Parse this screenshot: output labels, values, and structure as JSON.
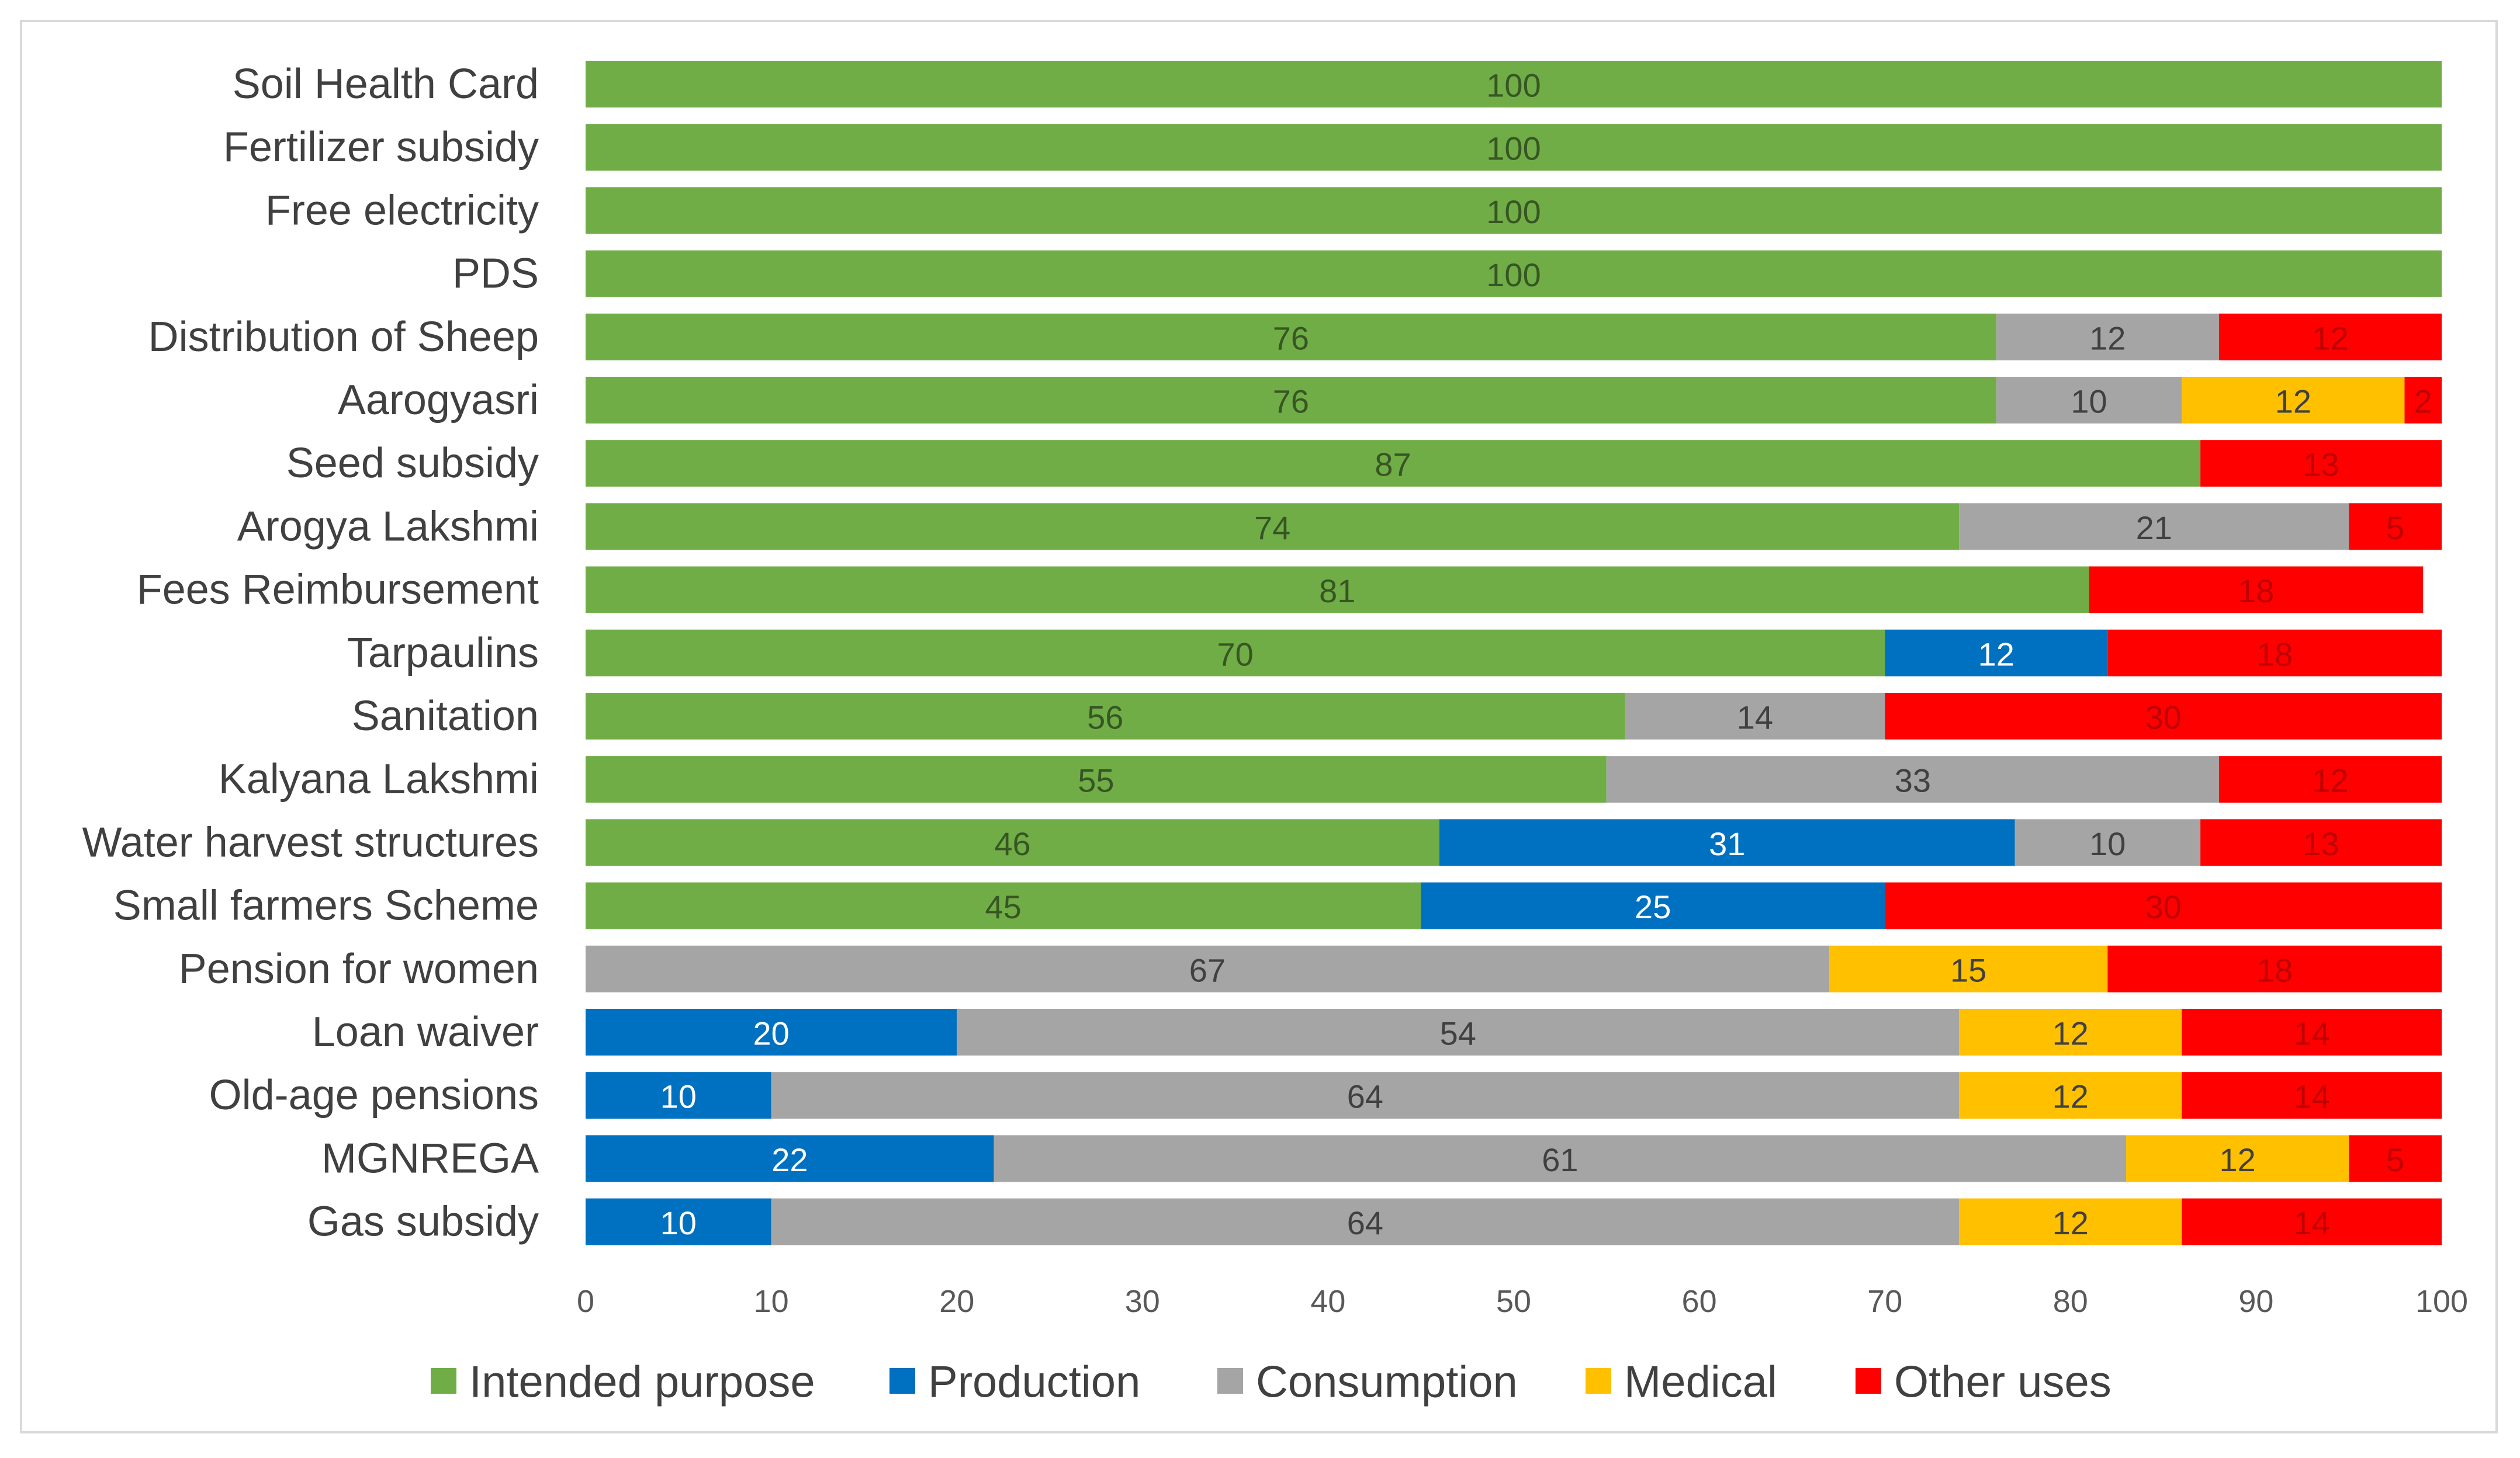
{
  "chart_data": {
    "type": "bar",
    "orientation": "horizontal",
    "stacked": true,
    "categories": [
      "Soil Health Card",
      "Fertilizer subsidy",
      "Free electricity",
      "PDS",
      "Distribution of Sheep",
      "Aarogyasri",
      "Seed subsidy",
      "Arogya Lakshmi",
      "Fees Reimbursement",
      "Tarpaulins",
      "Sanitation",
      "Kalyana Lakshmi",
      "Water harvest structures",
      "Small farmers Scheme",
      "Pension for women",
      "Loan waiver",
      "Old-age pensions",
      "MGNREGA",
      "Gas subsidy"
    ],
    "series": [
      {
        "name": "Intended purpose",
        "color": "#70ad47",
        "values": [
          100,
          100,
          100,
          100,
          76,
          76,
          87,
          74,
          81,
          70,
          56,
          55,
          46,
          45,
          0,
          0,
          0,
          0,
          0
        ]
      },
      {
        "name": "Production",
        "color": "#0070c0",
        "values": [
          0,
          0,
          0,
          0,
          0,
          0,
          0,
          0,
          0,
          12,
          0,
          0,
          31,
          25,
          0,
          20,
          10,
          22,
          10
        ]
      },
      {
        "name": "Consumption",
        "color": "#a5a5a5",
        "values": [
          0,
          0,
          0,
          0,
          12,
          10,
          0,
          21,
          0,
          0,
          14,
          33,
          10,
          0,
          67,
          54,
          64,
          61,
          64
        ]
      },
      {
        "name": "Medical",
        "color": "#ffc000",
        "values": [
          0,
          0,
          0,
          0,
          0,
          12,
          0,
          0,
          0,
          0,
          0,
          0,
          0,
          0,
          15,
          12,
          12,
          12,
          12
        ]
      },
      {
        "name": "Other uses",
        "color": "#ff0000",
        "values": [
          0,
          0,
          0,
          0,
          12,
          2,
          13,
          5,
          18,
          18,
          30,
          12,
          13,
          30,
          18,
          14,
          14,
          5,
          14
        ]
      }
    ],
    "xlim": [
      0,
      100
    ],
    "xticks": [
      "0",
      "10",
      "20",
      "30",
      "40",
      "50",
      "60",
      "70",
      "80",
      "90",
      "100"
    ],
    "title": "",
    "xlabel": "",
    "ylabel": "",
    "legend": "bottom",
    "grid": false
  }
}
